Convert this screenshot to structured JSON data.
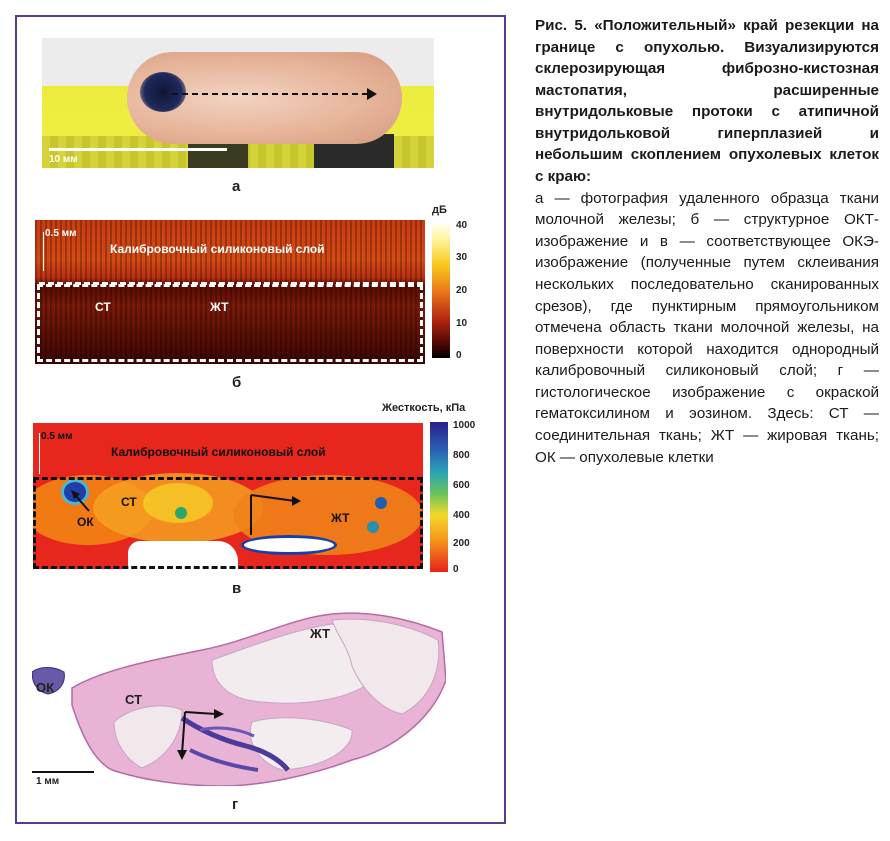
{
  "figure": {
    "panel_a": {
      "letter": "а",
      "scale_label": "10 мм"
    },
    "panel_b": {
      "letter": "б",
      "scale_label": "0.5 мм",
      "layer_label": "Калибровочный силиконовый слой",
      "label_ct": "СТ",
      "label_zht": "ЖТ",
      "colorbar_title": "дБ",
      "colorbar_ticks": [
        "40",
        "30",
        "20",
        "10",
        "0"
      ]
    },
    "panel_v": {
      "letter": "в",
      "scale_label": "0.5 мм",
      "layer_label": "Калибровочный силиконовый слой",
      "label_ok": "ОК",
      "label_ct": "СТ",
      "label_zht": "ЖТ",
      "colorbar_title": "Жесткость, кПа",
      "colorbar_ticks": [
        "1000",
        "800",
        "600",
        "400",
        "200",
        "0"
      ]
    },
    "panel_g": {
      "letter": "г",
      "scale_label": "1 мм",
      "label_zht": "ЖТ",
      "label_ok": "ОК",
      "label_ct": "СТ"
    }
  },
  "caption": {
    "title": "Рис. 5. «Положительный» край резекции на границе с опухолью. Визуализируются склерозирующая фиброзно-кистозная мастопатия, расширенные внутридольковые протоки с атипичной внутридольковой гиперплазией и небольшим скоплением опухолевых клеток с краю:",
    "body": "а — фотография удаленного образца ткани молочной железы; б — структурное ОКТ-изображение и в — соответствующее ОКЭ-изображение (полученные путем склеивания нескольких последовательно сканированных срезов), где пунктирным прямоугольником отмечена область ткани молочной железы, на поверхности которой находится однородный калибровочный силиконовый слой; г — гистологическое изображение с окраской гематоксилином и эозином. Здесь: СТ — соединительная ткань; ЖТ — жировая ткань; ОК — опухолевые клетки"
  },
  "colors": {
    "frame": "#5a3b8c"
  }
}
